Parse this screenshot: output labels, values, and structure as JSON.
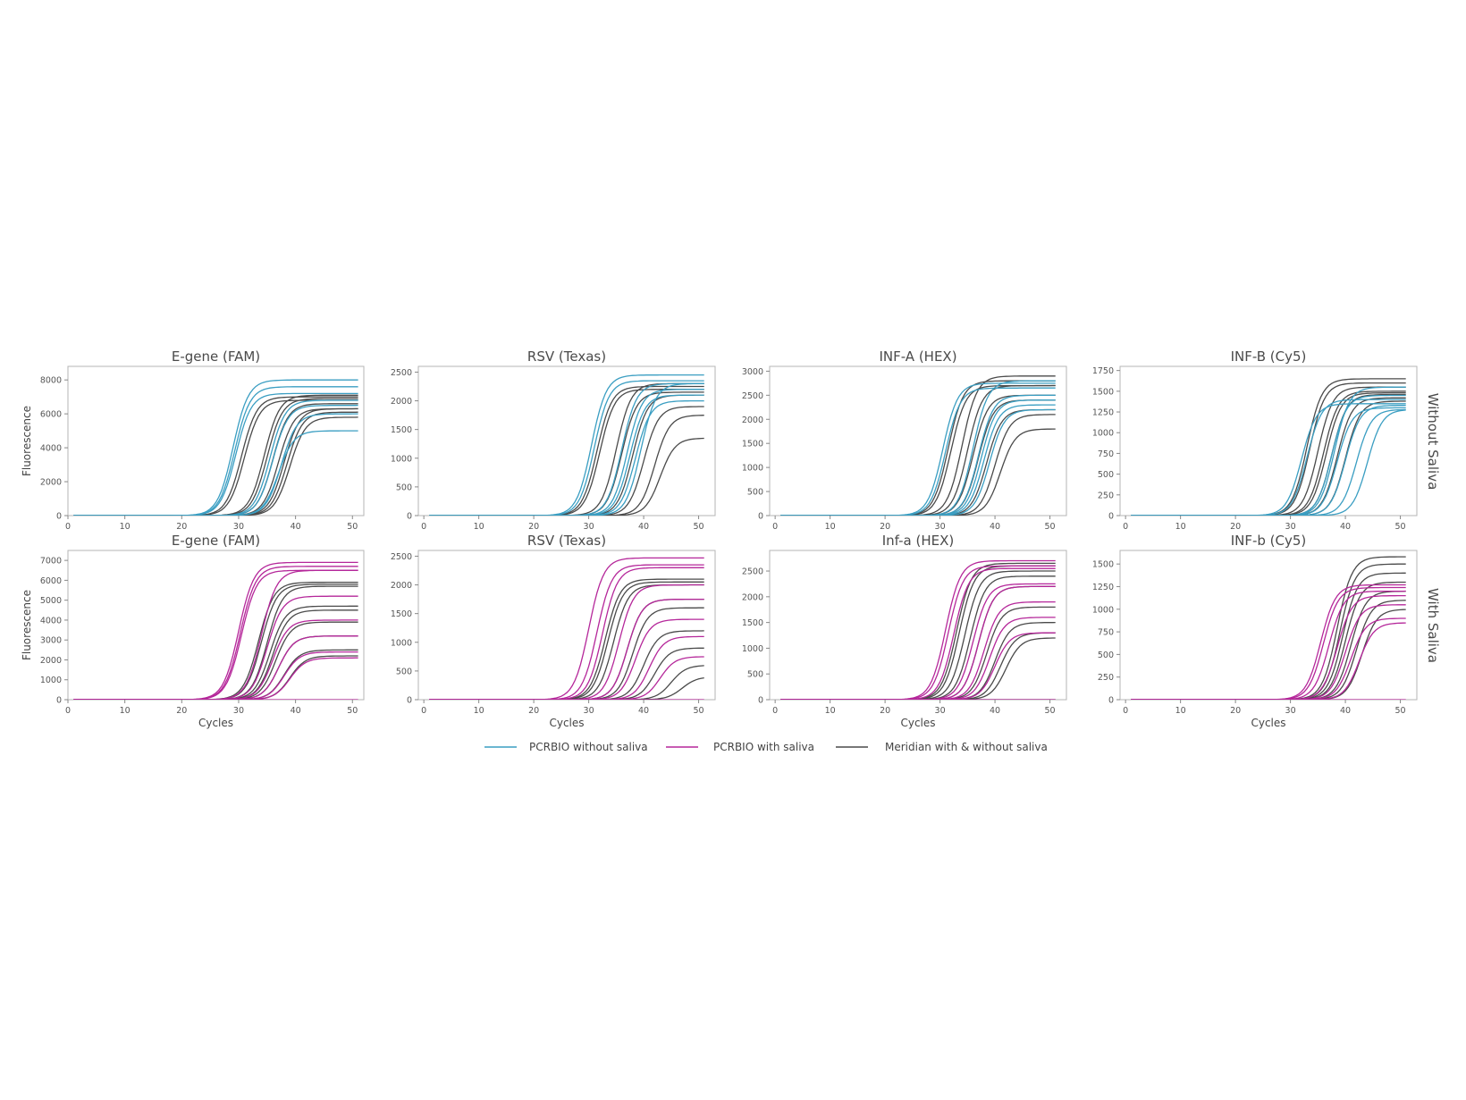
{
  "colors": {
    "pcrbio_without": "#3a9ec2",
    "pcrbio_with": "#b5279a",
    "meridian": "#4a4a4a"
  },
  "legend": [
    {
      "label": "PCRBIO without saliva",
      "color": "#3a9ec2"
    },
    {
      "label": "PCRBIO with saliva",
      "color": "#b5279a"
    },
    {
      "label": "Meridian with & without saliva",
      "color": "#4a4a4a"
    }
  ],
  "row_labels": [
    "Without Saliva",
    "With Saliva"
  ],
  "chart_data": [
    {
      "type": "line",
      "row": 0,
      "col": 0,
      "title": "E-gene (FAM)",
      "xlabel": "",
      "ylabel": "Fluorescence",
      "xlim": [
        0,
        52
      ],
      "ylim": [
        0,
        8800
      ],
      "xticks": [
        0,
        10,
        20,
        30,
        40,
        50
      ],
      "yticks": [
        0,
        2000,
        4000,
        6000,
        8000
      ],
      "series": [
        {
          "group": "pcrbio_without",
          "curves": [
            [
              29,
              8000
            ],
            [
              29.3,
              7600
            ],
            [
              29.5,
              7200
            ],
            [
              35.5,
              6800
            ],
            [
              36,
              6500
            ],
            [
              37,
              5000
            ],
            [
              37.5,
              6000
            ]
          ]
        },
        {
          "group": "meridian",
          "curves": [
            [
              30.5,
              7000
            ],
            [
              31,
              6800
            ],
            [
              34.5,
              7100
            ],
            [
              35,
              6900
            ],
            [
              36,
              6600
            ],
            [
              37,
              6300
            ],
            [
              38,
              6300
            ],
            [
              38.5,
              6100
            ],
            [
              39,
              5800
            ]
          ]
        }
      ]
    },
    {
      "type": "line",
      "row": 0,
      "col": 1,
      "title": "RSV (Texas)",
      "xlabel": "",
      "ylabel": "",
      "xlim": [
        -1,
        53
      ],
      "ylim": [
        0,
        2600
      ],
      "xticks": [
        0,
        10,
        20,
        30,
        40,
        50
      ],
      "yticks": [
        0,
        500,
        1000,
        1500,
        2000,
        2500
      ],
      "series": [
        {
          "group": "pcrbio_without",
          "curves": [
            [
              30.5,
              2450
            ],
            [
              31,
              2350
            ],
            [
              36,
              2300
            ],
            [
              37,
              2200
            ],
            [
              37.5,
              2100
            ],
            [
              38.5,
              2000
            ],
            [
              39.5,
              2300
            ]
          ]
        },
        {
          "group": "meridian",
          "curves": [
            [
              31.5,
              2250
            ],
            [
              32,
              2200
            ],
            [
              35,
              2300
            ],
            [
              36,
              2150
            ],
            [
              38,
              2100
            ],
            [
              40,
              1900
            ],
            [
              42,
              1750
            ],
            [
              43,
              1350
            ]
          ]
        }
      ]
    },
    {
      "type": "line",
      "row": 0,
      "col": 2,
      "title": "INF-A (HEX)",
      "xlabel": "",
      "ylabel": "",
      "xlim": [
        -1,
        53
      ],
      "ylim": [
        0,
        3100
      ],
      "xticks": [
        0,
        10,
        20,
        30,
        40,
        50
      ],
      "yticks": [
        0,
        500,
        1000,
        1500,
        2000,
        2500,
        3000
      ],
      "series": [
        {
          "group": "pcrbio_without",
          "curves": [
            [
              30.5,
              2750
            ],
            [
              31,
              2650
            ],
            [
              36,
              2800
            ],
            [
              37,
              2500
            ],
            [
              37.5,
              2400
            ],
            [
              38,
              2300
            ],
            [
              39,
              2200
            ]
          ]
        },
        {
          "group": "meridian",
          "curves": [
            [
              31.5,
              2800
            ],
            [
              32,
              2700
            ],
            [
              34,
              2900
            ],
            [
              35,
              2700
            ],
            [
              36,
              2500
            ],
            [
              37,
              2400
            ],
            [
              38.5,
              2200
            ],
            [
              40,
              2100
            ],
            [
              41,
              1800
            ]
          ]
        }
      ]
    },
    {
      "type": "line",
      "row": 0,
      "col": 3,
      "title": "INF-B (Cy5)",
      "xlabel": "",
      "ylabel": "",
      "xlim": [
        -1,
        53
      ],
      "ylim": [
        0,
        1800
      ],
      "xticks": [
        0,
        10,
        20,
        30,
        40,
        50
      ],
      "yticks": [
        0,
        250,
        500,
        750,
        1000,
        1250,
        1500,
        1750
      ],
      "series": [
        {
          "group": "pcrbio_without",
          "curves": [
            [
              32,
              1350
            ],
            [
              33,
              1400
            ],
            [
              37.5,
              1450
            ],
            [
              38,
              1550
            ],
            [
              38.5,
              1300
            ],
            [
              40,
              1330
            ],
            [
              42,
              1280
            ],
            [
              44,
              1280
            ]
          ]
        },
        {
          "group": "meridian",
          "curves": [
            [
              33,
              1650
            ],
            [
              33.5,
              1600
            ],
            [
              35,
              1550
            ],
            [
              36,
              1500
            ],
            [
              36.5,
              1480
            ],
            [
              37.5,
              1460
            ],
            [
              38.5,
              1420
            ],
            [
              40,
              1380
            ]
          ]
        }
      ]
    },
    {
      "type": "line",
      "row": 1,
      "col": 0,
      "title": "E-gene (FAM)",
      "xlabel": "Cycles",
      "ylabel": "Fluorescence",
      "xlim": [
        0,
        52
      ],
      "ylim": [
        0,
        7500
      ],
      "xticks": [
        0,
        10,
        20,
        30,
        40,
        50
      ],
      "yticks": [
        0,
        1000,
        2000,
        3000,
        4000,
        5000,
        6000,
        7000
      ],
      "series": [
        {
          "group": "pcrbio_with",
          "curves": [
            [
              30,
              6900
            ],
            [
              30.3,
              6700
            ],
            [
              30.5,
              6500
            ],
            [
              34,
              6500
            ],
            [
              35,
              5200
            ],
            [
              36,
              4000
            ],
            [
              37,
              3200
            ],
            [
              38,
              2400
            ],
            [
              39,
              2100
            ],
            [
              60,
              40
            ]
          ]
        },
        {
          "group": "meridian",
          "curves": [
            [
              33.5,
              5900
            ],
            [
              34,
              5800
            ],
            [
              35,
              5700
            ],
            [
              35.5,
              4700
            ],
            [
              36,
              4500
            ],
            [
              36.5,
              3900
            ],
            [
              37,
              3200
            ],
            [
              38,
              2500
            ],
            [
              39,
              2200
            ]
          ]
        }
      ]
    },
    {
      "type": "line",
      "row": 1,
      "col": 1,
      "title": "RSV (Texas)",
      "xlabel": "Cycles",
      "ylabel": "",
      "xlim": [
        -1,
        53
      ],
      "ylim": [
        0,
        2600
      ],
      "xticks": [
        0,
        10,
        20,
        30,
        40,
        50
      ],
      "yticks": [
        0,
        500,
        1000,
        1500,
        2000,
        2500
      ],
      "series": [
        {
          "group": "pcrbio_with",
          "curves": [
            [
              30,
              2470
            ],
            [
              31.5,
              2350
            ],
            [
              32.5,
              2300
            ],
            [
              35.5,
              2000
            ],
            [
              37,
              1750
            ],
            [
              38.5,
              1400
            ],
            [
              41,
              1100
            ],
            [
              43,
              750
            ],
            [
              60,
              40
            ]
          ]
        },
        {
          "group": "meridian",
          "curves": [
            [
              33,
              2100
            ],
            [
              33.5,
              2050
            ],
            [
              34.5,
              2000
            ],
            [
              37,
              1750
            ],
            [
              38,
              1600
            ],
            [
              40,
              1200
            ],
            [
              42,
              900
            ],
            [
              45,
              600
            ],
            [
              47,
              400
            ]
          ]
        }
      ]
    },
    {
      "type": "line",
      "row": 1,
      "col": 2,
      "title": "Inf-a (HEX)",
      "xlabel": "Cycles",
      "ylabel": "",
      "xlim": [
        -1,
        53
      ],
      "ylim": [
        0,
        2900
      ],
      "xticks": [
        0,
        10,
        20,
        30,
        40,
        50
      ],
      "yticks": [
        0,
        500,
        1000,
        1500,
        2000,
        2500
      ],
      "series": [
        {
          "group": "pcrbio_with",
          "curves": [
            [
              31,
              2700
            ],
            [
              31.5,
              2600
            ],
            [
              32.5,
              2550
            ],
            [
              36,
              2250
            ],
            [
              37,
              2200
            ],
            [
              38,
              1900
            ],
            [
              39,
              1600
            ],
            [
              40,
              1300
            ],
            [
              60,
              60
            ]
          ]
        },
        {
          "group": "meridian",
          "curves": [
            [
              33,
              2650
            ],
            [
              33.5,
              2600
            ],
            [
              34.5,
              2500
            ],
            [
              35.5,
              2400
            ],
            [
              37,
              2200
            ],
            [
              38.5,
              1800
            ],
            [
              40,
              1500
            ],
            [
              41,
              1300
            ],
            [
              42,
              1200
            ],
            [
              60,
              80
            ]
          ]
        }
      ]
    },
    {
      "type": "line",
      "row": 1,
      "col": 3,
      "title": "INF-b (Cy5)",
      "xlabel": "Cycles",
      "ylabel": "",
      "xlim": [
        -1,
        53
      ],
      "ylim": [
        0,
        1650
      ],
      "xticks": [
        0,
        10,
        20,
        30,
        40,
        50
      ],
      "yticks": [
        0,
        250,
        500,
        750,
        1000,
        1250,
        1500
      ],
      "series": [
        {
          "group": "pcrbio_with",
          "curves": [
            [
              35.5,
              1270
            ],
            [
              36,
              1240
            ],
            [
              37,
              1200
            ],
            [
              38.5,
              1150
            ],
            [
              40,
              1050
            ],
            [
              41,
              900
            ],
            [
              42.5,
              850
            ],
            [
              60,
              60
            ]
          ]
        },
        {
          "group": "meridian",
          "curves": [
            [
              38.5,
              1580
            ],
            [
              39,
              1500
            ],
            [
              39.5,
              1400
            ],
            [
              40,
              1300
            ],
            [
              41,
              1200
            ],
            [
              42,
              1100
            ],
            [
              43,
              1000
            ]
          ]
        }
      ]
    }
  ]
}
